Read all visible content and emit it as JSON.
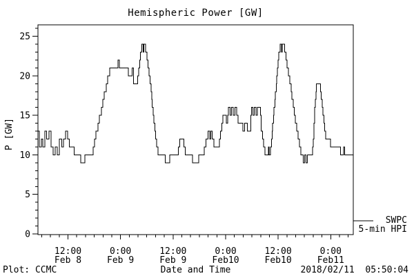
{
  "colors": {
    "ink": "#000000",
    "background": "#ffffff"
  },
  "footer": {
    "left": "Plot: CCMC",
    "right": "2018/02/11  05:50:04"
  },
  "chart_data": {
    "type": "line",
    "title": "Hemispheric Power [GW]",
    "xlabel": "Date and Time",
    "ylabel": "P [GW]",
    "ylim": [
      0,
      26.5
    ],
    "x_span_hours": 72,
    "y_major_ticks": [
      0,
      5,
      10,
      15,
      20,
      25
    ],
    "y_minor_step": 1,
    "x_minor_step_hours": 2,
    "x_minor_start_hour": 0.85,
    "x_major_ticks": [
      {
        "hour": 6.85,
        "time": "12:00",
        "date": "Feb 8"
      },
      {
        "hour": 18.85,
        "time": "0:00",
        "date": "Feb 9"
      },
      {
        "hour": 30.85,
        "time": "12:00",
        "date": "Feb 9"
      },
      {
        "hour": 42.85,
        "time": "0:00",
        "date": "Feb10"
      },
      {
        "hour": 54.85,
        "time": "12:00",
        "date": "Feb10"
      },
      {
        "hour": 66.85,
        "time": "0:00",
        "date": "Feb11"
      }
    ],
    "legend": {
      "source": "SWPC",
      "series": "5-min HPI"
    },
    "series": [
      {
        "name": "5-min HPI",
        "units": "GW",
        "points_hours_vs_gw": [
          [
            0,
            13
          ],
          [
            0.3,
            11
          ],
          [
            0.8,
            12
          ],
          [
            1.1,
            11
          ],
          [
            1.6,
            13
          ],
          [
            2,
            12
          ],
          [
            2.5,
            13
          ],
          [
            3,
            11
          ],
          [
            3.5,
            10
          ],
          [
            3.9,
            11
          ],
          [
            4.4,
            10
          ],
          [
            4.9,
            12
          ],
          [
            5.4,
            11
          ],
          [
            5.8,
            12
          ],
          [
            6.3,
            13
          ],
          [
            6.8,
            12
          ],
          [
            7.2,
            11
          ],
          [
            7.9,
            11
          ],
          [
            8.3,
            10
          ],
          [
            9.6,
            10
          ],
          [
            9.8,
            9
          ],
          [
            10.4,
            9
          ],
          [
            10.7,
            10
          ],
          [
            12.2,
            10
          ],
          [
            12.6,
            11
          ],
          [
            12.9,
            12
          ],
          [
            13.2,
            13
          ],
          [
            13.7,
            14
          ],
          [
            14,
            15
          ],
          [
            14.5,
            16
          ],
          [
            14.8,
            17
          ],
          [
            15.1,
            18
          ],
          [
            15.6,
            19
          ],
          [
            15.9,
            20
          ],
          [
            16.4,
            21
          ],
          [
            17.5,
            21
          ],
          [
            18.2,
            21
          ],
          [
            18.3,
            22
          ],
          [
            18.6,
            21
          ],
          [
            20.2,
            21
          ],
          [
            20.6,
            20
          ],
          [
            21.3,
            20
          ],
          [
            21.5,
            21
          ],
          [
            21.8,
            19
          ],
          [
            22.6,
            19
          ],
          [
            22.8,
            20
          ],
          [
            23,
            21
          ],
          [
            23.2,
            22
          ],
          [
            23.4,
            23
          ],
          [
            23.7,
            24
          ],
          [
            24,
            23
          ],
          [
            24.2,
            24
          ],
          [
            24.6,
            23
          ],
          [
            24.9,
            22
          ],
          [
            25.1,
            21
          ],
          [
            25.4,
            20
          ],
          [
            25.6,
            19
          ],
          [
            25.8,
            18
          ],
          [
            26,
            17
          ],
          [
            26.1,
            16
          ],
          [
            26.3,
            15
          ],
          [
            26.5,
            14
          ],
          [
            26.7,
            13
          ],
          [
            26.9,
            12
          ],
          [
            27.1,
            11
          ],
          [
            27.4,
            10
          ],
          [
            28.4,
            10
          ],
          [
            29.1,
            9
          ],
          [
            29.9,
            9
          ],
          [
            30.1,
            10
          ],
          [
            31.8,
            10
          ],
          [
            32.1,
            11
          ],
          [
            32.4,
            12
          ],
          [
            33,
            12
          ],
          [
            33.3,
            11
          ],
          [
            33.6,
            10
          ],
          [
            35,
            10
          ],
          [
            35.3,
            9
          ],
          [
            36.5,
            9
          ],
          [
            36.7,
            10
          ],
          [
            37.8,
            10
          ],
          [
            38,
            11
          ],
          [
            38.4,
            12
          ],
          [
            38.8,
            13
          ],
          [
            39.2,
            12
          ],
          [
            39.5,
            13
          ],
          [
            39.8,
            12
          ],
          [
            40.2,
            11
          ],
          [
            41.1,
            11
          ],
          [
            41.4,
            12
          ],
          [
            41.7,
            13
          ],
          [
            42,
            14
          ],
          [
            42.2,
            15
          ],
          [
            42.8,
            15
          ],
          [
            43,
            14
          ],
          [
            43.3,
            15
          ],
          [
            43.5,
            16
          ],
          [
            43.9,
            15
          ],
          [
            44.2,
            16
          ],
          [
            44.6,
            15
          ],
          [
            45,
            16
          ],
          [
            45.4,
            15
          ],
          [
            45.7,
            14
          ],
          [
            46.5,
            14
          ],
          [
            46.8,
            13
          ],
          [
            47.2,
            14
          ],
          [
            47.6,
            14
          ],
          [
            47.8,
            13
          ],
          [
            48.3,
            13
          ],
          [
            48.6,
            15
          ],
          [
            48.8,
            16
          ],
          [
            49.1,
            15
          ],
          [
            49.4,
            16
          ],
          [
            49.8,
            15
          ],
          [
            50.1,
            16
          ],
          [
            50.5,
            16
          ],
          [
            50.8,
            15
          ],
          [
            51,
            13
          ],
          [
            51.3,
            12
          ],
          [
            51.5,
            11
          ],
          [
            51.8,
            10
          ],
          [
            52.4,
            10
          ],
          [
            52.6,
            11
          ],
          [
            52.8,
            10
          ],
          [
            53.1,
            11
          ],
          [
            53.3,
            12
          ],
          [
            53.5,
            13
          ],
          [
            53.6,
            14
          ],
          [
            53.8,
            15
          ],
          [
            53.9,
            16
          ],
          [
            54.1,
            17
          ],
          [
            54.2,
            18
          ],
          [
            54.4,
            19
          ],
          [
            54.5,
            20
          ],
          [
            54.7,
            21
          ],
          [
            54.8,
            22
          ],
          [
            55,
            23
          ],
          [
            55.3,
            24
          ],
          [
            55.6,
            23
          ],
          [
            55.8,
            24
          ],
          [
            56.1,
            24
          ],
          [
            56.3,
            23
          ],
          [
            56.6,
            22
          ],
          [
            56.9,
            21
          ],
          [
            57.2,
            20
          ],
          [
            57.5,
            19
          ],
          [
            57.8,
            18
          ],
          [
            58,
            17
          ],
          [
            58.3,
            16
          ],
          [
            58.5,
            15
          ],
          [
            58.8,
            14
          ],
          [
            59.1,
            13
          ],
          [
            59.4,
            12
          ],
          [
            59.7,
            11
          ],
          [
            60,
            10
          ],
          [
            60.4,
            10
          ],
          [
            60.6,
            9
          ],
          [
            60.9,
            10
          ],
          [
            61.2,
            9
          ],
          [
            61.5,
            10
          ],
          [
            62.4,
            10
          ],
          [
            62.7,
            11
          ],
          [
            62.9,
            12
          ],
          [
            63,
            14
          ],
          [
            63.2,
            16
          ],
          [
            63.3,
            17
          ],
          [
            63.5,
            18
          ],
          [
            63.6,
            19
          ],
          [
            64.3,
            19
          ],
          [
            64.5,
            18
          ],
          [
            64.7,
            17
          ],
          [
            64.9,
            16
          ],
          [
            65.1,
            15
          ],
          [
            65.3,
            14
          ],
          [
            65.5,
            13
          ],
          [
            65.7,
            12
          ],
          [
            66.5,
            12
          ],
          [
            66.8,
            11
          ],
          [
            68.9,
            11
          ],
          [
            69.1,
            10
          ],
          [
            69.6,
            10
          ],
          [
            69.8,
            11
          ],
          [
            70,
            10
          ],
          [
            72,
            10
          ]
        ]
      }
    ]
  }
}
